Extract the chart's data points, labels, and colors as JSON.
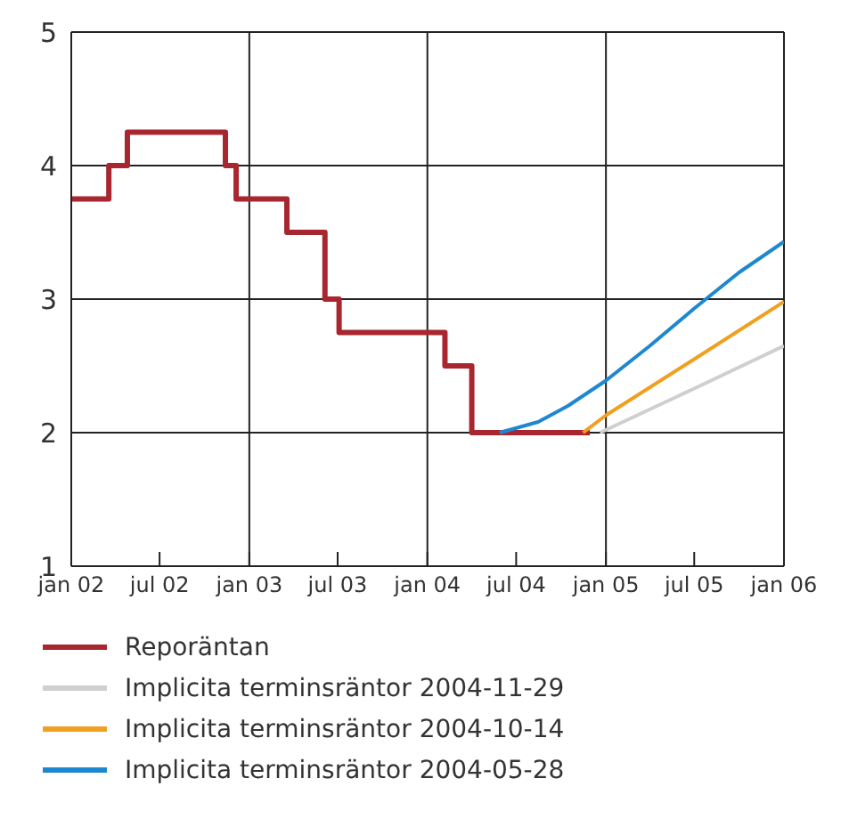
{
  "chart_data": {
    "type": "line",
    "legend": "bottom",
    "grid": true,
    "line_style": "solid",
    "marker": "none",
    "xlim": [
      "2002-01-01",
      "2006-01-01"
    ],
    "xticks": [
      {
        "value": "2002-01-01",
        "label": "jan 02"
      },
      {
        "value": "2002-07-01",
        "label": "jul 02"
      },
      {
        "value": "2003-01-01",
        "label": "jan 03"
      },
      {
        "value": "2003-07-01",
        "label": "jul 03"
      },
      {
        "value": "2004-01-01",
        "label": "jan 04"
      },
      {
        "value": "2004-07-01",
        "label": "jul 04"
      },
      {
        "value": "2005-01-01",
        "label": "jan 05"
      },
      {
        "value": "2005-07-01",
        "label": "jul 05"
      },
      {
        "value": "2006-01-01",
        "label": "jan 06"
      }
    ],
    "ylim": [
      1,
      5
    ],
    "yticks": [
      1,
      2,
      3,
      4,
      5
    ],
    "series": [
      {
        "name": "Reporäntan",
        "type": "step",
        "color": "#a8262f",
        "x": [
          "2002-01-01",
          "2002-03-19",
          "2002-04-26",
          "2002-11-13",
          "2002-12-05",
          "2003-03-19",
          "2003-06-05",
          "2003-07-04",
          "2004-02-06",
          "2004-04-01",
          "2004-11-29"
        ],
        "values": [
          3.75,
          4.0,
          4.25,
          4.0,
          3.75,
          3.5,
          3.0,
          2.75,
          2.5,
          2.0,
          2.0
        ]
      },
      {
        "name": "Implicita terminsräntor 2004-11-29",
        "color": "#cfcfcf",
        "x": [
          "2004-12-20",
          "2005-07-01",
          "2006-01-01"
        ],
        "values": [
          2.0,
          2.33,
          2.65
        ]
      },
      {
        "name": "Implicita terminsräntor 2004-10-14",
        "color": "#f0a020",
        "x": [
          "2004-11-15",
          "2005-01-01",
          "2005-07-01",
          "2006-01-01"
        ],
        "values": [
          2.0,
          2.13,
          2.55,
          2.98
        ]
      },
      {
        "name": "Implicita terminsräntor 2004-05-28",
        "color": "#1e88cf",
        "x": [
          "2004-05-28",
          "2004-08-15",
          "2004-10-15",
          "2005-01-01",
          "2005-04-01",
          "2005-07-01",
          "2005-10-01",
          "2006-01-01"
        ],
        "values": [
          2.0,
          2.08,
          2.2,
          2.39,
          2.65,
          2.93,
          3.2,
          3.43
        ]
      }
    ]
  }
}
